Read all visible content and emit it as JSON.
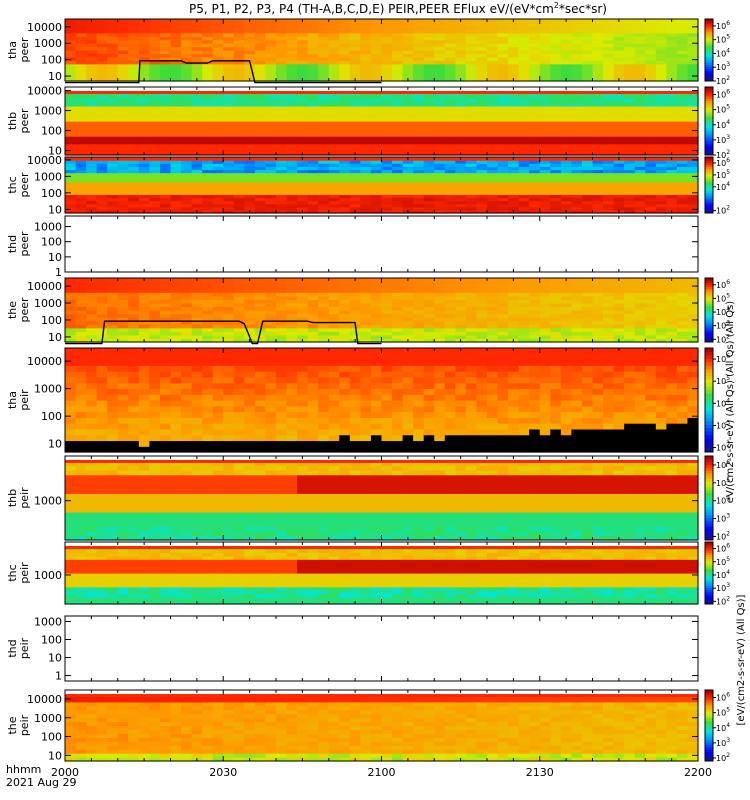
{
  "chart_data": {
    "type": "heatmap",
    "title": "P5, P1, P2, P3, P4 (TH-A,B,C,D,E) PEIR,PEER EFlux eV/(eV*cm2*sec*sr)",
    "title_parts": {
      "prefix": "P5, P1, P2, P3, P4 (TH-A,B,C,D,E) PEIR,PEER EFlux eV/(eV*cm",
      "sup": "2",
      "suffix": "*sec*sr)"
    },
    "x_axis": {
      "range_min": [
        0,
        120
      ],
      "ticks": [
        {
          "min": 0,
          "label": "2000"
        },
        {
          "min": 30,
          "label": "2030"
        },
        {
          "min": 60,
          "label": "2100"
        },
        {
          "min": 90,
          "label": "2130"
        },
        {
          "min": 120,
          "label": "2200"
        }
      ],
      "row_label": "hhmm",
      "date": "2021 Aug 29"
    },
    "colorbar_label": "eV/(cm2-s-sr-eV) (All Qs) (All Qs) (All Qs)",
    "colorbar_right_label": "[eV/(cm2-s-sr-eV) (All Qs)]",
    "panels": [
      {
        "probe": "tha",
        "species": "peer",
        "ylabel_top": "tha",
        "ylabel_bottom": "peer",
        "y_range": [
          5,
          30000
        ],
        "yticks": [
          10,
          100,
          1000,
          10000
        ],
        "tick_labels": [
          "10",
          "100",
          "1000",
          "10000"
        ],
        "pattern": "e_tha",
        "colorbar": true,
        "cb_ticks": [
          {
            "e": 2
          },
          {
            "e": 3
          },
          {
            "e": 4
          },
          {
            "e": 5
          },
          {
            "e": 6
          }
        ],
        "cb_range": [
          2,
          6.5
        ],
        "overlay": [
          [
            0,
            4
          ],
          [
            14,
            4
          ],
          [
            14.2,
            85
          ],
          [
            22,
            85
          ],
          [
            23,
            62
          ],
          [
            27,
            62
          ],
          [
            28,
            85
          ],
          [
            35,
            85
          ],
          [
            36,
            4
          ],
          [
            60,
            4
          ]
        ],
        "gap_top": false
      },
      {
        "probe": "thb",
        "species": "peer",
        "ylabel_top": "thb",
        "ylabel_bottom": "peer",
        "y_range": [
          6,
          15000
        ],
        "yticks": [
          10,
          100,
          1000,
          10000
        ],
        "tick_labels": [
          "10",
          "100",
          "1000",
          "10000"
        ],
        "pattern": "e_thb",
        "colorbar": true,
        "cb_ticks": [
          {
            "e": 2
          },
          {
            "e": 3
          },
          {
            "e": 4
          },
          {
            "e": 5
          },
          {
            "e": 6
          }
        ],
        "cb_range": [
          2,
          6.5
        ],
        "overlay": [],
        "gap_top": true
      },
      {
        "probe": "thc",
        "species": "peer",
        "ylabel_top": "thc",
        "ylabel_bottom": "peer",
        "y_range": [
          6,
          15000
        ],
        "yticks": [
          10,
          100,
          1000,
          10000
        ],
        "tick_labels": [
          "10",
          "100",
          "1000",
          "10000"
        ],
        "pattern": "e_thc",
        "colorbar": true,
        "cb_ticks": [
          {
            "e": 2
          },
          {
            "e": 4
          },
          {
            "e": 5
          },
          {
            "e": 6
          }
        ],
        "cb_range": [
          1.8,
          6.5
        ],
        "overlay": [],
        "gap_top": false
      },
      {
        "probe": "thd",
        "species": "peer",
        "ylabel_top": "thd",
        "ylabel_bottom": "peer",
        "y_range": [
          1,
          5000
        ],
        "yticks": [
          1,
          10,
          100,
          1000
        ],
        "tick_labels": [
          "1",
          "10",
          "100",
          "1000"
        ],
        "pattern": "empty",
        "colorbar": false,
        "cb_ticks": [],
        "overlay": [],
        "gap_top": false
      },
      {
        "probe": "the",
        "species": "peer",
        "ylabel_top": "the",
        "ylabel_bottom": "peer",
        "y_range": [
          5,
          30000
        ],
        "yticks": [
          10,
          100,
          1000,
          10000
        ],
        "tick_labels": [
          "10",
          "100",
          "1000",
          "10000"
        ],
        "pattern": "e_the",
        "colorbar": true,
        "cb_ticks": [
          {
            "e": 2
          },
          {
            "e": 3
          },
          {
            "e": 4
          },
          {
            "e": 5
          },
          {
            "e": 6
          }
        ],
        "cb_range": [
          1.8,
          6.5
        ],
        "overlay": [
          [
            0,
            4
          ],
          [
            7,
            4
          ],
          [
            7.5,
            85
          ],
          [
            33,
            85
          ],
          [
            34,
            60
          ],
          [
            35.5,
            4
          ],
          [
            36.5,
            4
          ],
          [
            37.5,
            85
          ],
          [
            46,
            85
          ],
          [
            47,
            70
          ],
          [
            55,
            70
          ],
          [
            55.5,
            4
          ],
          [
            60,
            4
          ]
        ],
        "gap_top": false
      },
      {
        "probe": "tha",
        "species": "peir",
        "ylabel_top": "tha",
        "ylabel_bottom": "peir",
        "y_range": [
          5,
          30000
        ],
        "yticks": [
          10,
          100,
          1000,
          10000
        ],
        "tick_labels": [
          "10",
          "100",
          "1000",
          "10000"
        ],
        "pattern": "i_tha",
        "colorbar": true,
        "cb_ticks": [
          {
            "e": 2
          },
          {
            "e": 3
          },
          {
            "e": 4
          },
          {
            "e": 5
          },
          {
            "e": 6
          }
        ],
        "cb_range": [
          1.8,
          6.5
        ],
        "overlay": [],
        "gap_top": false
      },
      {
        "probe": "thb",
        "species": "peir",
        "ylabel_top": "thb",
        "ylabel_bottom": "peir",
        "y_range": [
          50,
          30000
        ],
        "yticks": [
          1000
        ],
        "tick_labels": [
          "1000"
        ],
        "pattern": "i_thb",
        "colorbar": true,
        "cb_ticks": [
          {
            "e": 2
          },
          {
            "e": 3
          },
          {
            "e": 4
          },
          {
            "e": 5
          },
          {
            "e": 6
          }
        ],
        "cb_range": [
          1.8,
          6.5
        ],
        "overlay": [],
        "gap_top": true
      },
      {
        "probe": "thc",
        "species": "peir",
        "ylabel_top": "thc",
        "ylabel_bottom": "peir",
        "y_range": [
          50,
          30000
        ],
        "yticks": [
          1000
        ],
        "tick_labels": [
          "1000"
        ],
        "pattern": "i_thc",
        "colorbar": true,
        "cb_ticks": [
          {
            "e": 2
          },
          {
            "e": 3
          },
          {
            "e": 4
          },
          {
            "e": 5
          },
          {
            "e": 6
          }
        ],
        "cb_range": [
          1.8,
          6.5
        ],
        "overlay": [],
        "gap_top": true
      },
      {
        "probe": "thd",
        "species": "peir",
        "ylabel_top": "thd",
        "ylabel_bottom": "peir",
        "y_range": [
          0.5,
          2000
        ],
        "yticks": [
          1,
          10,
          100,
          1000
        ],
        "tick_labels": [
          "1",
          "10",
          "100",
          "1000"
        ],
        "pattern": "empty",
        "colorbar": false,
        "cb_ticks": [],
        "overlay": [],
        "gap_top": false
      },
      {
        "probe": "the",
        "species": "peir",
        "ylabel_top": "the",
        "ylabel_bottom": "peir",
        "y_range": [
          5,
          30000
        ],
        "yticks": [
          10,
          100,
          1000,
          10000
        ],
        "tick_labels": [
          "10",
          "100",
          "1000",
          "10000"
        ],
        "pattern": "i_the",
        "colorbar": true,
        "cb_ticks": [
          {
            "e": 2
          },
          {
            "e": 3
          },
          {
            "e": 4
          },
          {
            "e": 5
          },
          {
            "e": 6
          }
        ],
        "cb_range": [
          1.8,
          6.5
        ],
        "overlay": [],
        "gap_top": true
      }
    ]
  }
}
